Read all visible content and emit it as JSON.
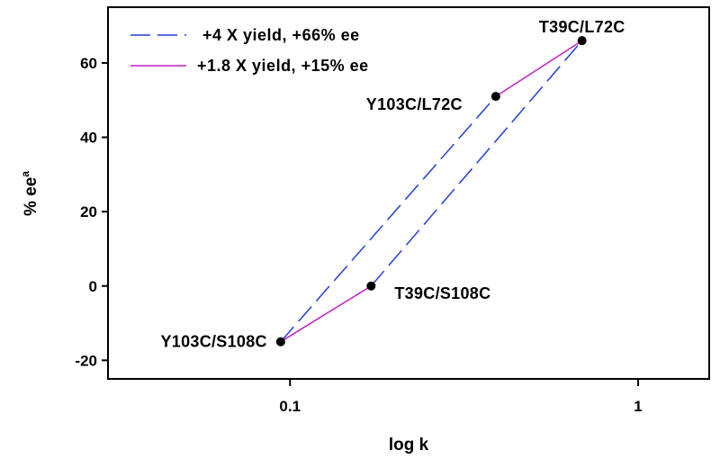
{
  "chart_data": {
    "type": "scatter",
    "xlabel": "log k",
    "ylabel": "% ee",
    "ylabel_superscript": "a",
    "xscale": "log",
    "xlim": [
      0.03,
      1.6
    ],
    "ylim": [
      -25,
      75
    ],
    "xticks": [
      {
        "value": 0.1,
        "label": "0.1"
      },
      {
        "value": 1,
        "label": "1"
      }
    ],
    "yticks": [
      {
        "value": -20,
        "label": "-20"
      },
      {
        "value": 0,
        "label": "0"
      },
      {
        "value": 20,
        "label": "20"
      },
      {
        "value": 40,
        "label": "40"
      },
      {
        "value": 60,
        "label": "60"
      }
    ],
    "grid": false,
    "legend_position": "top-left",
    "points": [
      {
        "label": "Y103C/S108C",
        "x": 0.094,
        "y": -15
      },
      {
        "label": "T39C/S108C",
        "x": 0.171,
        "y": 0
      },
      {
        "label": "Y103C/L72C",
        "x": 0.39,
        "y": 51
      },
      {
        "label": "T39C/L72C",
        "x": 0.69,
        "y": 66
      }
    ],
    "series": [
      {
        "name": "+4 X yield, +66% ee",
        "style": "dashed",
        "color": "#1f3fd8",
        "lines": [
          [
            "Y103C/S108C",
            "Y103C/L72C"
          ],
          [
            "T39C/S108C",
            "T39C/L72C"
          ]
        ]
      },
      {
        "name": "+1.8 X yield, +15% ee",
        "style": "solid",
        "color": "#c020c0",
        "lines": [
          [
            "Y103C/S108C",
            "T39C/S108C"
          ],
          [
            "Y103C/L72C",
            "T39C/L72C"
          ]
        ]
      }
    ]
  }
}
